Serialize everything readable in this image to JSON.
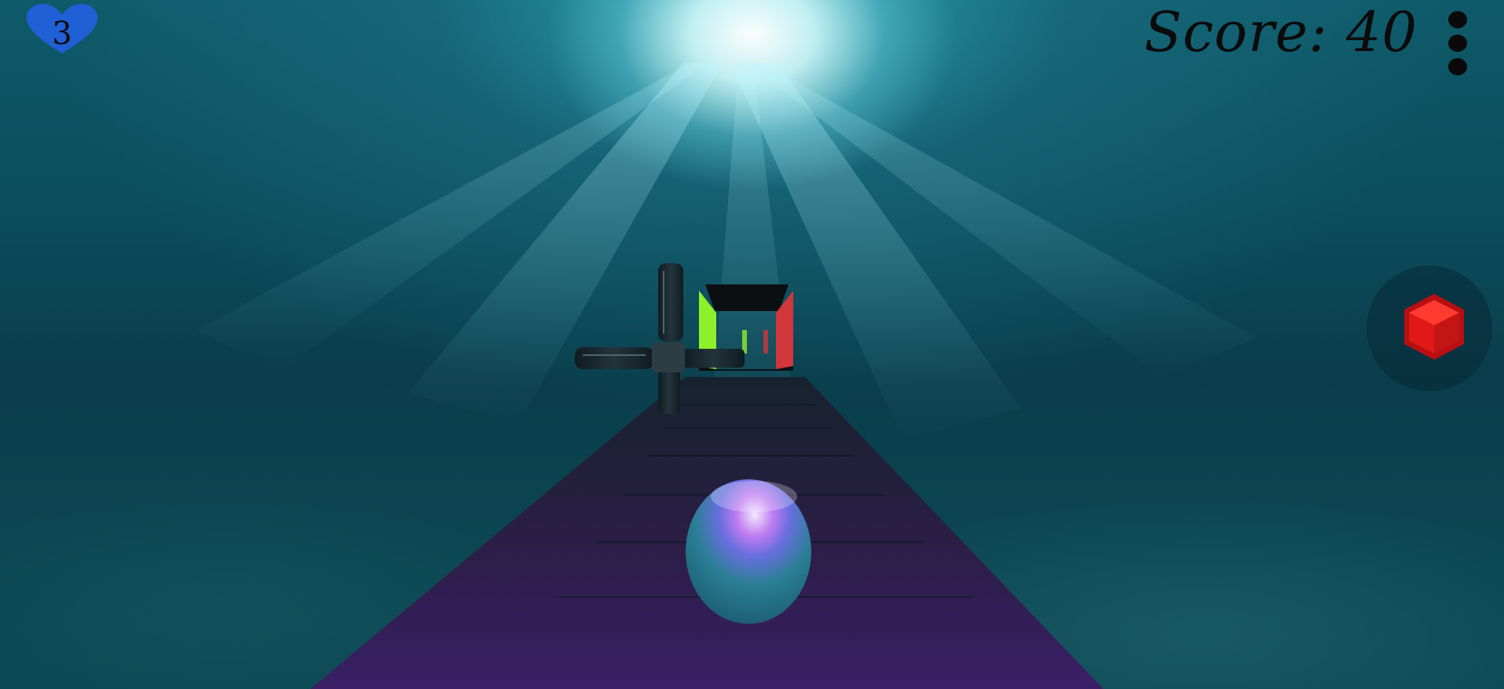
{
  "hud": {
    "lives": "3",
    "score_label": "Score: 40",
    "menu_icon": "vertical-ellipsis-icon",
    "action_icon": "red-cube-icon"
  },
  "colors": {
    "heart": "#1a4fd8",
    "action_cube": "#e01818",
    "gate_left": "#8ef02a",
    "gate_right": "#d0363a",
    "ball_highlight": "#c080ff"
  }
}
